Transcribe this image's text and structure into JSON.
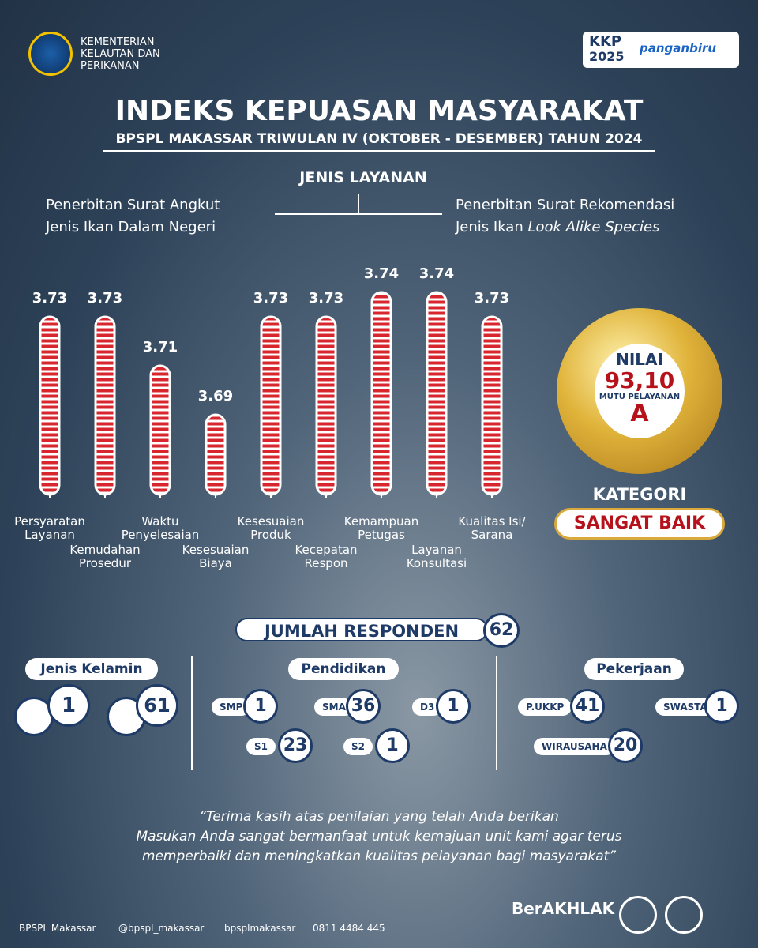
{
  "header": {
    "ministry": [
      "KEMENTERIAN",
      "KELAUTAN DAN",
      "PERIKANAN"
    ],
    "logos": [
      "KKP",
      "2025",
      "panganbiru"
    ],
    "title": "INDEKS KEPUASAN MASYARAKAT",
    "subtitle": "BPSPL MAKASSAR TRIWULAN IV (OKTOBER - DESEMBER) TAHUN 2024",
    "service_heading": "JENIS LAYANAN",
    "services": [
      [
        "Penerbitan Surat Angkut",
        "Jenis Ikan Dalam Negeri"
      ],
      [
        "Penerbitan Surat Rekomendasi",
        "Jenis Ikan",
        "Look Alike Species"
      ]
    ]
  },
  "chart_data": {
    "type": "bar",
    "categories": [
      "Persyaratan Layanan",
      "Kemudahan Prosedur",
      "Waktu Penyelesaian",
      "Kesesuaian Biaya",
      "Kesesuaian Produk",
      "Kecepatan Respon",
      "Kemampuan Petugas",
      "Layanan Konsultasi",
      "Kualitas Isi/ Sarana"
    ],
    "values": [
      3.73,
      3.73,
      3.71,
      3.69,
      3.73,
      3.73,
      3.74,
      3.74,
      3.73
    ],
    "color": "#d7262e"
  },
  "score": {
    "label": "NILAI",
    "value": "93,10",
    "quality_label": "MUTU PELAYANAN",
    "grade": "A",
    "category_label": "KATEGORI",
    "category": "SANGAT BAIK"
  },
  "respondents": {
    "label": "JUMLAH RESPONDEN",
    "total": 62,
    "gender": {
      "title": "Jenis Kelamin",
      "female": 1,
      "male": 61
    },
    "education": {
      "title": "Pendidikan",
      "items": [
        {
          "name": "SMP",
          "count": 1
        },
        {
          "name": "SMA",
          "count": 36
        },
        {
          "name": "D3",
          "count": 1
        },
        {
          "name": "S1",
          "count": 23
        },
        {
          "name": "S2",
          "count": 1
        }
      ]
    },
    "occupation": {
      "title": "Pekerjaan",
      "items": [
        {
          "name": "P.UKKP",
          "count": 41
        },
        {
          "name": "SWASTA",
          "count": 1
        },
        {
          "name": "WIRAUSAHA",
          "count": 20
        }
      ]
    }
  },
  "quote": [
    "“Terima kasih atas penilaian yang telah Anda berikan",
    "Masukan Anda sangat bermanfaat untuk kemajuan unit kami agar terus",
    "memperbaiki dan meningkatkan kualitas pelayanan bagi masyarakat”"
  ],
  "footer": {
    "facebook": "BPSPL Makassar",
    "x": "@bpspl_makassar",
    "instagram": "bpsplmakassar",
    "whatsapp": "0811 4484 445",
    "brand": "BerAKHLAK"
  }
}
